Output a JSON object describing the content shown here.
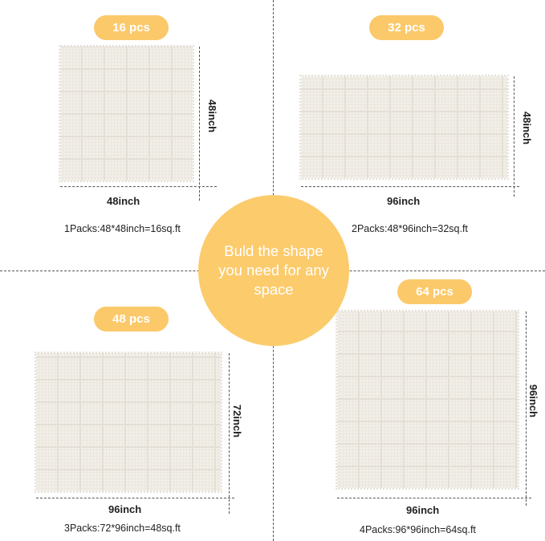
{
  "center_text": "Buld the shape you need for any space",
  "accent_color": "#fbc96a",
  "panels": [
    {
      "pcs": "16 pcs",
      "width_label": "48inch",
      "height_label": "48inch",
      "caption": "1Packs:48*48inch=16sq.ft"
    },
    {
      "pcs": "32 pcs",
      "width_label": "96inch",
      "height_label": "48inch",
      "caption": "2Packs:48*96inch=32sq.ft"
    },
    {
      "pcs": "48 pcs",
      "width_label": "96inch",
      "height_label": "72inch",
      "caption": "3Packs:72*96inch=48sq.ft"
    },
    {
      "pcs": "64 pcs",
      "width_label": "96inch",
      "height_label": "96inch",
      "caption": "4Packs:96*96inch=64sq.ft"
    }
  ]
}
